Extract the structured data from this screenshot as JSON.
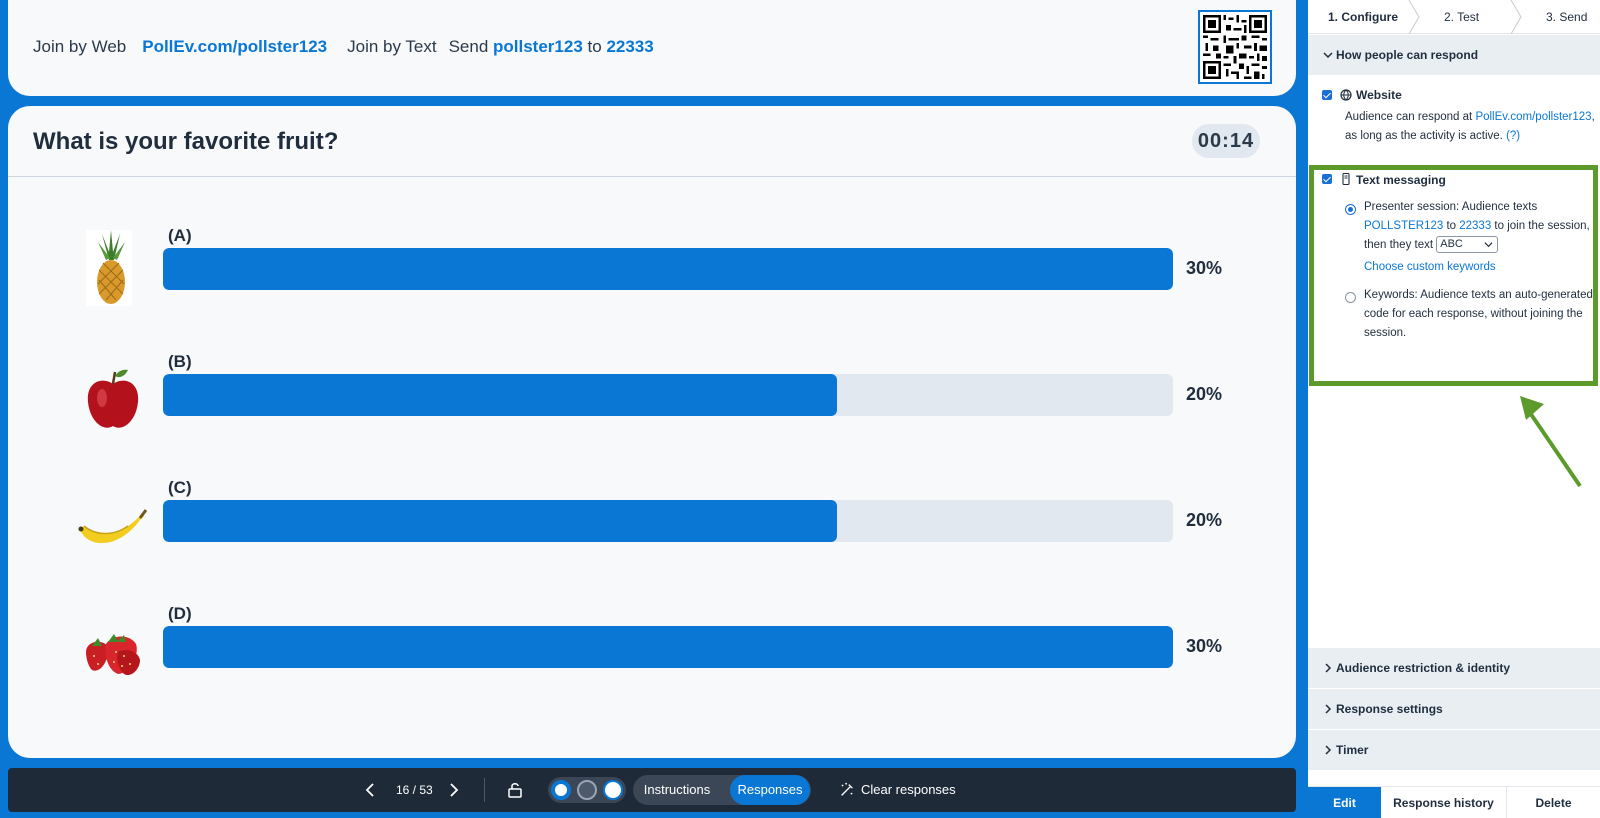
{
  "join": {
    "web_label": "Join by Web",
    "web_url": "PollEv.com/pollster123",
    "text_label": "Join by Text",
    "send_word": "Send",
    "keyword": "pollster123",
    "to_word": "to",
    "number": "22333"
  },
  "poll": {
    "title": "What is your favorite fruit?",
    "timer": "00:14",
    "options": [
      {
        "label": "(A)",
        "percent": "30%",
        "fraction": 1.0,
        "image_icon": "pineapple-icon"
      },
      {
        "label": "(B)",
        "percent": "20%",
        "fraction": 0.667,
        "image_icon": "apple-icon"
      },
      {
        "label": "(C)",
        "percent": "20%",
        "fraction": 0.667,
        "image_icon": "banana-icon"
      },
      {
        "label": "(D)",
        "percent": "30%",
        "fraction": 1.0,
        "image_icon": "strawberry-icon"
      }
    ]
  },
  "toolbar": {
    "page": "16 / 53",
    "instructions": "Instructions",
    "responses": "Responses",
    "clear": "Clear responses"
  },
  "panel": {
    "steps": [
      "1. Configure",
      "2. Test",
      "3. Send"
    ],
    "respond_header": "How people can respond",
    "website": {
      "title": "Website",
      "line1_prefix": "Audience can respond at ",
      "line1_link": "PollEv.com/pollster123",
      "line1_suffix": ",",
      "line2": "as long as the activity is active. ",
      "help": "(?)"
    },
    "texting": {
      "title": "Text messaging",
      "presenter_line1": "Presenter session: Audience texts",
      "presenter_kw": "POLLSTER123",
      "presenter_to": " to ",
      "presenter_num": "22333",
      "presenter_after": " to join the session,",
      "presenter_line3": "then they text",
      "select_value": "ABC",
      "custom_link": "Choose custom keywords",
      "keywords_line1": "Keywords: Audience texts an auto-generated",
      "keywords_line2": "code for each response, without joining the",
      "keywords_line3": "session."
    },
    "sections": [
      "Audience restriction & identity",
      "Response settings",
      "Timer"
    ],
    "bottom_tabs": [
      "Edit",
      "Response history",
      "Delete"
    ]
  },
  "colors": {
    "brand_blue": "#0a77d4",
    "highlight_green": "#5c9b2b",
    "toolbar_dark": "#1e2a38"
  }
}
